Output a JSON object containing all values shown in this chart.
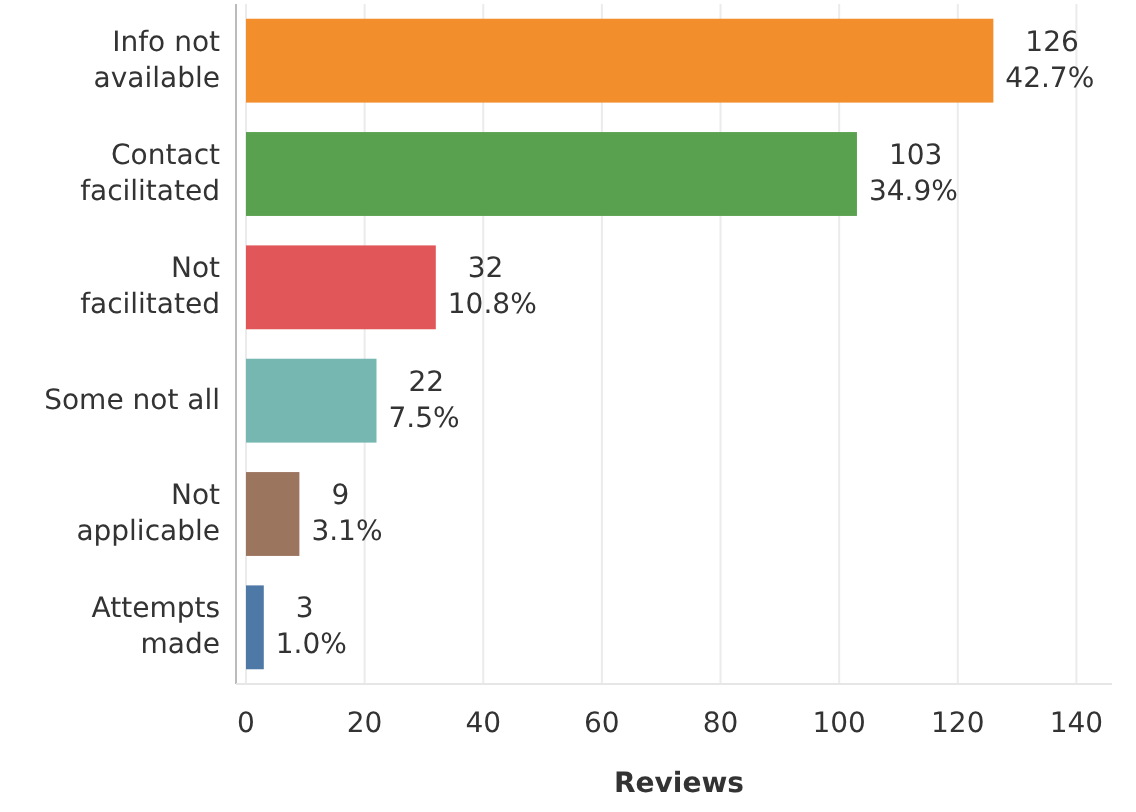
{
  "chart_data": {
    "type": "bar",
    "orientation": "horizontal",
    "xlabel": "Reviews",
    "categories": [
      "Info not available",
      "Contact facilitated",
      "Not facilitated",
      "Some not all",
      "Not applicable",
      "Attempts made"
    ],
    "values": [
      126,
      103,
      32,
      22,
      9,
      3
    ],
    "colors": [
      "#f28e2b",
      "#59a14f",
      "#e15759",
      "#76b7b2",
      "#9c755f",
      "#4e79a7"
    ],
    "value_labels": [
      "126\n42.7%",
      "103\n34.9%",
      "32\n10.8%",
      "22\n7.5%",
      "9\n3.1%",
      "3\n1.0%"
    ],
    "xlim": [
      0,
      146
    ],
    "xticks": [
      0,
      20,
      40,
      60,
      80,
      100,
      120,
      140
    ],
    "grid": "x"
  }
}
